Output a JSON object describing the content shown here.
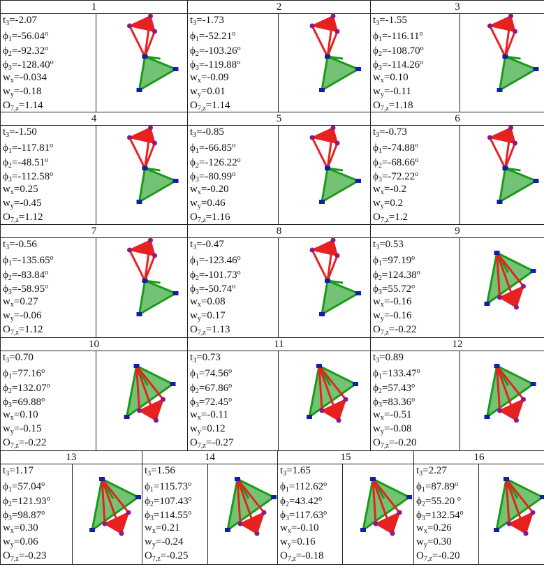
{
  "variables": [
    {
      "base": "t",
      "sub": "3",
      "eq": "="
    },
    {
      "base": "ϕ",
      "sub": "1",
      "eq": "=",
      "sup": "o"
    },
    {
      "base": "ϕ",
      "sub": "2",
      "eq": "=",
      "sup": "o"
    },
    {
      "base": "ϕ",
      "sub": "3",
      "eq": "=",
      "sup": "o"
    },
    {
      "base": "w",
      "sub": "x",
      "eq": "="
    },
    {
      "base": "w",
      "sub": "y",
      "eq": "="
    },
    {
      "base": "O",
      "sub": "7,z",
      "eq": "="
    }
  ],
  "cells": [
    {
      "label": "1",
      "values": [
        "-2.07",
        "-56.04",
        "-92.32",
        "-128.40",
        "-0.034",
        "-0.18",
        "1.14"
      ]
    },
    {
      "label": "2",
      "values": [
        "-1.73",
        "-52.21",
        "-103.26",
        "-119.88",
        "-0.09",
        "0.01",
        "1.14"
      ]
    },
    {
      "label": "3",
      "values": [
        "-1.55",
        "-116.11",
        "-108.70",
        "-114.26",
        "0.10",
        "-0.11",
        "1.18"
      ]
    },
    {
      "label": "4",
      "values": [
        "-1.50",
        "-117.81",
        "-48.51",
        "-112.58",
        "0.25",
        "-0.45",
        "1.12"
      ]
    },
    {
      "label": "5",
      "values": [
        "-0.85",
        "-66.85",
        "-126.22",
        "-80.99",
        "-0.20",
        "0.46",
        "1.16"
      ]
    },
    {
      "label": "6",
      "values": [
        "-0.73",
        "-74.88",
        "-68.66",
        "-72.22",
        "-0.2",
        "0.2",
        "1.2"
      ]
    },
    {
      "label": "7",
      "values": [
        "-0.56",
        "-135.65",
        "-83.84",
        "-58.95",
        "0.27",
        "-0.06",
        "1.12"
      ]
    },
    {
      "label": "8",
      "values": [
        "-0.47",
        "-123.46",
        "-101.73",
        "-50.74",
        "0.08",
        "0.17",
        "1.13"
      ]
    },
    {
      "label": "9",
      "values": [
        "0.53",
        "97.19",
        "124.38",
        "55.72",
        "-0.16",
        "-0.16",
        "-0.22"
      ]
    },
    {
      "label": "10",
      "values": [
        "0.70",
        "77.16",
        "132.07",
        "69.88",
        "0.10",
        "-0.15",
        "-0.22"
      ]
    },
    {
      "label": "11",
      "values": [
        "0.73",
        "74.56",
        "67.86",
        "72.45",
        "-0.11",
        "0.12",
        "-0.27"
      ]
    },
    {
      "label": "12",
      "values": [
        "0.89",
        "133.47",
        "57.43",
        "83.36",
        "-0.51",
        "-0.08",
        "-0.20"
      ]
    },
    {
      "label": "13",
      "values": [
        "1.17",
        "57.04",
        "121.93",
        "98.87",
        "0.30",
        "0.06",
        "-0.23"
      ]
    },
    {
      "label": "14",
      "values": [
        "1.56",
        "115.73",
        "107.43",
        "114.55",
        "0.21",
        "-0.24",
        "-0.25"
      ]
    },
    {
      "label": "15",
      "values": [
        "1.65",
        "112.62",
        "43.42",
        "117.63",
        "-0.10",
        "0.16",
        "-0.18"
      ]
    },
    {
      "label": "16",
      "values": [
        "2.27",
        "87.89",
        "55.20 ",
        "132.54",
        "0.26",
        "0.30",
        "-0.20"
      ]
    }
  ]
}
